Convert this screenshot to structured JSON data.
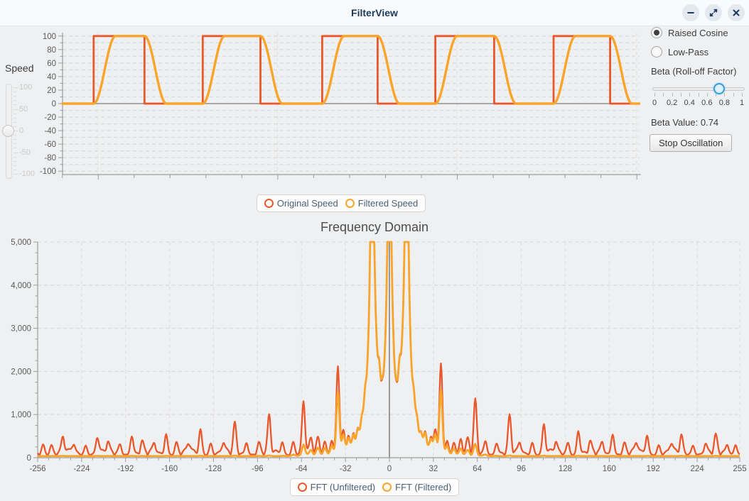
{
  "window": {
    "title": "FilterView"
  },
  "titlebar": {
    "buttons": [
      "minimize",
      "maximize",
      "close"
    ]
  },
  "speed_control": {
    "label": "Speed",
    "ticks": [
      "100",
      "50",
      "0",
      "-50",
      "-100"
    ],
    "value": 0,
    "min": -100,
    "max": 100
  },
  "filter_panel": {
    "radios": [
      {
        "label": "Raised Cosine",
        "selected": true
      },
      {
        "label": "Low-Pass",
        "selected": false
      }
    ],
    "beta_label": "Beta (Roll-off Factor)",
    "beta_ticks": [
      "0",
      "0.2",
      "0.4",
      "0.6",
      "0.8",
      "1"
    ],
    "beta_min": 0,
    "beta_max": 1,
    "beta_value": 0.74,
    "beta_value_text": "Beta Value: 0.74",
    "stop_button": "Stop Oscillation"
  },
  "time_legend": [
    {
      "label": "Original Speed",
      "color": "#e9582c"
    },
    {
      "label": "Filtered Speed",
      "color": "#f9a52b"
    }
  ],
  "fft_legend": [
    {
      "label": "FFT (Unfiltered)",
      "color": "#e9582c"
    },
    {
      "label": "FFT (Filtered)",
      "color": "#f9a52b"
    }
  ],
  "chart_data": [
    {
      "id": "speed_time",
      "type": "line",
      "title": "",
      "ylabel": "Speed",
      "ylim": [
        -100,
        100
      ],
      "y_tick_labels": [
        100,
        80,
        60,
        40,
        20,
        0,
        -20,
        -40,
        -60,
        -80,
        -100
      ],
      "y_minor_step": 10,
      "x_axis_labels_visible": false,
      "grid": true,
      "series": [
        {
          "name": "Original Speed",
          "color": "#e9582c",
          "shape": "square-wave",
          "low": 0,
          "high": 100,
          "pulses": [
            [
              0.054,
              0.142
            ],
            [
              0.243,
              0.343
            ],
            [
              0.45,
              0.546
            ],
            [
              0.646,
              0.748
            ],
            [
              0.851,
              0.949
            ]
          ]
        },
        {
          "name": "Filtered Speed",
          "color": "#f9a52b",
          "shape": "raised-cosine-smoothed",
          "low": 0,
          "high": 100,
          "transition_width": 0.038,
          "pulses": [
            [
              0.054,
              0.142
            ],
            [
              0.243,
              0.343
            ],
            [
              0.45,
              0.546
            ],
            [
              0.646,
              0.748
            ],
            [
              0.851,
              0.949
            ]
          ]
        }
      ]
    },
    {
      "id": "fft",
      "type": "line",
      "title": "Frequency Domain",
      "xlim": [
        -256,
        255
      ],
      "ylim": [
        0,
        5000
      ],
      "x_tick_step": 32,
      "x_minor_step": 8,
      "y_tick_step": 1000,
      "y_minor_step": 250,
      "grid": true,
      "y_tick_labels": [
        "0",
        "1,000",
        "2,000",
        "3,000",
        "4,000",
        "5,000"
      ],
      "x_tick_labels": [
        "-256",
        "-224",
        "-192",
        "-160",
        "-128",
        "-96",
        "-64",
        "-32",
        "0",
        "32",
        "64",
        "96",
        "128",
        "160",
        "192",
        "224",
        "255"
      ],
      "series": [
        {
          "name": "FFT (Unfiltered)",
          "color": "#e9582c",
          "baseline": {
            "offset": 55,
            "amp": 150
          },
          "peak_sigma": 1.1,
          "peaks_mirrored": [
            [
              0,
              9000
            ],
            [
              2.5,
              2300
            ],
            [
              5,
              1400
            ],
            [
              7.5,
              1900
            ],
            [
              10,
              2500
            ],
            [
              12.5,
              9000
            ],
            [
              15,
              2300
            ],
            [
              17.5,
              1400
            ],
            [
              20,
              800
            ],
            [
              23,
              520
            ],
            [
              26,
              430
            ],
            [
              30,
              380
            ],
            [
              33.5,
              480
            ],
            [
              37.5,
              2050
            ],
            [
              42,
              330
            ],
            [
              47,
              290
            ],
            [
              52,
              330
            ],
            [
              57,
              290
            ],
            [
              62.5,
              1180
            ],
            [
              70,
              290
            ],
            [
              78,
              270
            ],
            [
              87.5,
              820
            ],
            [
              95,
              240
            ],
            [
              104,
              280
            ],
            [
              112.5,
              660
            ],
            [
              121,
              240
            ],
            [
              130,
              260
            ],
            [
              137.5,
              550
            ],
            [
              146,
              230
            ],
            [
              155,
              250
            ],
            [
              162.5,
              480
            ],
            [
              171,
              220
            ],
            [
              180,
              240
            ],
            [
              187.5,
              430
            ],
            [
              196,
              210
            ],
            [
              205,
              230
            ],
            [
              212.5,
              390
            ],
            [
              221,
              210
            ],
            [
              230,
              220
            ],
            [
              237.5,
              360
            ],
            [
              246,
              210
            ],
            [
              252,
              230
            ]
          ]
        },
        {
          "name": "FFT (Filtered)",
          "color": "#f9a52b",
          "filter": {
            "type": "raised-cosine",
            "pass_freq": 10,
            "stop_freq": 85
          },
          "floor": 35
        }
      ]
    }
  ]
}
